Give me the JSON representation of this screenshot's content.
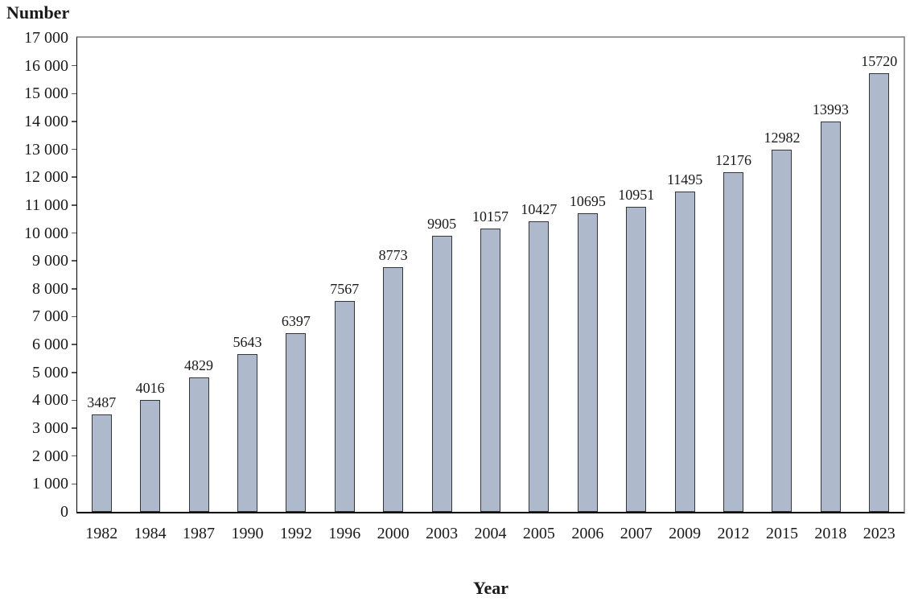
{
  "chart_data": {
    "type": "bar",
    "title": "",
    "ylabel": "Number",
    "xlabel": "Year",
    "categories": [
      "1982",
      "1984",
      "1987",
      "1990",
      "1992",
      "1996",
      "2000",
      "2003",
      "2004",
      "2005",
      "2006",
      "2007",
      "2009",
      "2012",
      "2015",
      "2018",
      "2023"
    ],
    "values": [
      3487,
      4016,
      4829,
      5643,
      6397,
      7567,
      8773,
      9905,
      10157,
      10427,
      10695,
      10951,
      11495,
      12176,
      12982,
      13993,
      15720
    ],
    "value_labels": [
      "3487",
      "4016",
      "4829",
      "5643",
      "6397",
      "7567",
      "8773",
      "9905",
      "10157",
      "10427",
      "10695",
      "10951",
      "11495",
      "12176",
      "12982",
      "13993",
      "15720"
    ],
    "ylim": [
      0,
      17000
    ],
    "ytick_step": 1000,
    "ytick_labels": [
      "0",
      "1 000",
      "2 000",
      "3 000",
      "4 000",
      "5 000",
      "6 000",
      "7 000",
      "8 000",
      "9 000",
      "10 000",
      "11 000",
      "12 000",
      "13 000",
      "14 000",
      "15 000",
      "16 000",
      "17 000"
    ],
    "grid": false,
    "legend_position": "none",
    "colors": {
      "bar_fill": "#afb9cc",
      "bar_border": "#33363d",
      "axis_line": "#000000",
      "plot_border": "#9a9a9a",
      "tick": "#555555",
      "text": "#1a1a1a",
      "background": "#ffffff"
    }
  }
}
